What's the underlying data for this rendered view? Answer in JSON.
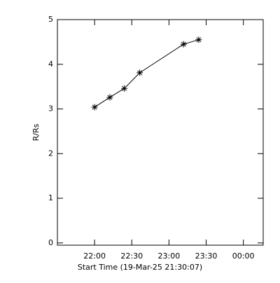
{
  "chart_data": {
    "type": "line",
    "x_label": "Start Time (19-Mar-25 21:30:07)",
    "y_label": "R/Rs",
    "x": [
      1320,
      1332.3,
      1344,
      1356.4,
      1391.8,
      1404
    ],
    "series": [
      {
        "color": "#000000",
        "values": [
          3.04,
          3.26,
          3.46,
          3.81,
          4.45,
          4.55
        ]
      }
    ],
    "xlim": [
      1290,
      1456
    ],
    "xticks": [
      {
        "value": 1320,
        "label": "22:00"
      },
      {
        "value": 1350,
        "label": "22:30"
      },
      {
        "value": 1380,
        "label": "23:00"
      },
      {
        "value": 1410,
        "label": "23:30"
      },
      {
        "value": 1440,
        "label": "00:00"
      }
    ],
    "ylim": [
      -0.05,
      5
    ],
    "yticks": [
      0,
      1,
      2,
      3,
      4,
      5
    ],
    "marker": "asterisk"
  }
}
